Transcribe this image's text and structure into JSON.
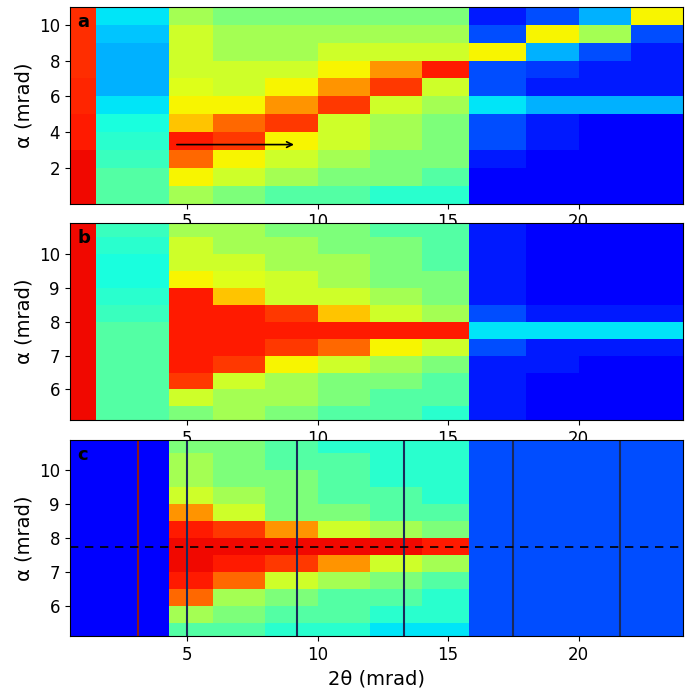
{
  "chart_data": [
    {
      "type": "heatmap",
      "label": "a",
      "y_label": "α (mrad)",
      "xlim": [
        0.5,
        24
      ],
      "ylim": [
        0,
        11
      ],
      "xticks": [
        5,
        10,
        15,
        20
      ],
      "yticks": [
        2,
        4,
        6,
        8,
        10
      ],
      "clim": [
        0,
        1
      ],
      "x_edges": [
        0.5,
        1.5,
        4.3,
        6,
        8,
        10,
        12,
        14,
        15.8,
        18,
        20,
        22,
        24
      ],
      "y_edges": [
        0,
        1,
        2,
        3,
        4,
        5,
        6,
        7,
        8,
        9,
        10,
        11
      ],
      "cells": [
        [
          0.9,
          0.45,
          0.55,
          0.5,
          0.45,
          0.45,
          0.4,
          0.4,
          0.12,
          0.12,
          0.12,
          0.12
        ],
        [
          0.9,
          0.45,
          0.65,
          0.6,
          0.55,
          0.5,
          0.5,
          0.45,
          0.12,
          0.12,
          0.12,
          0.12
        ],
        [
          0.9,
          0.42,
          0.8,
          0.65,
          0.6,
          0.55,
          0.5,
          0.5,
          0.15,
          0.12,
          0.12,
          0.12
        ],
        [
          0.88,
          0.4,
          0.88,
          0.85,
          0.65,
          0.6,
          0.55,
          0.5,
          0.2,
          0.15,
          0.12,
          0.12
        ],
        [
          0.88,
          0.38,
          0.7,
          0.8,
          0.85,
          0.6,
          0.55,
          0.5,
          0.2,
          0.15,
          0.12,
          0.12
        ],
        [
          0.87,
          0.35,
          0.65,
          0.65,
          0.75,
          0.85,
          0.6,
          0.55,
          0.35,
          0.3,
          0.3,
          0.3
        ],
        [
          0.87,
          0.3,
          0.62,
          0.6,
          0.65,
          0.75,
          0.85,
          0.6,
          0.2,
          0.15,
          0.15,
          0.15
        ],
        [
          0.86,
          0.3,
          0.6,
          0.6,
          0.6,
          0.65,
          0.75,
          0.88,
          0.2,
          0.18,
          0.15,
          0.15
        ],
        [
          0.86,
          0.3,
          0.6,
          0.55,
          0.55,
          0.6,
          0.6,
          0.6,
          0.65,
          0.3,
          0.2,
          0.15
        ],
        [
          0.86,
          0.32,
          0.6,
          0.55,
          0.55,
          0.55,
          0.55,
          0.55,
          0.2,
          0.65,
          0.55,
          0.2
        ],
        [
          0.86,
          0.35,
          0.55,
          0.5,
          0.5,
          0.5,
          0.5,
          0.5,
          0.15,
          0.2,
          0.3,
          0.65
        ]
      ],
      "arrow": {
        "x": [
          4.5,
          9.2
        ],
        "y": [
          3.3,
          3.3
        ]
      }
    },
    {
      "type": "heatmap",
      "label": "b",
      "y_label": "α (mrad)",
      "xlim": [
        0.5,
        24
      ],
      "ylim": [
        5.1,
        10.9
      ],
      "xticks": [
        5,
        10,
        15,
        20
      ],
      "yticks": [
        6,
        7,
        8,
        9,
        10
      ],
      "clim": [
        0,
        1
      ],
      "x_edges": [
        0.5,
        1.5,
        4.3,
        6,
        8,
        10,
        12,
        14,
        15.8,
        18,
        20,
        22,
        24
      ],
      "y_edges": [
        5,
        5.5,
        6,
        6.5,
        7,
        7.5,
        8,
        8.5,
        9,
        9.5,
        10,
        10.5,
        11
      ],
      "cells": [
        [
          0.9,
          0.45,
          0.5,
          0.55,
          0.5,
          0.45,
          0.45,
          0.4,
          0.15,
          0.12,
          0.12,
          0.12
        ],
        [
          0.9,
          0.45,
          0.6,
          0.55,
          0.55,
          0.5,
          0.45,
          0.45,
          0.15,
          0.12,
          0.12,
          0.12
        ],
        [
          0.9,
          0.45,
          0.85,
          0.6,
          0.55,
          0.5,
          0.5,
          0.45,
          0.15,
          0.12,
          0.12,
          0.12
        ],
        [
          0.9,
          0.45,
          0.88,
          0.85,
          0.65,
          0.6,
          0.55,
          0.5,
          0.15,
          0.15,
          0.12,
          0.12
        ],
        [
          0.9,
          0.45,
          0.88,
          0.88,
          0.85,
          0.8,
          0.65,
          0.6,
          0.2,
          0.15,
          0.15,
          0.15
        ],
        [
          0.9,
          0.45,
          0.88,
          0.88,
          0.88,
          0.88,
          0.88,
          0.88,
          0.35,
          0.35,
          0.35,
          0.35
        ],
        [
          0.9,
          0.42,
          0.88,
          0.88,
          0.85,
          0.7,
          0.6,
          0.55,
          0.2,
          0.15,
          0.15,
          0.15
        ],
        [
          0.9,
          0.4,
          0.88,
          0.7,
          0.6,
          0.6,
          0.55,
          0.5,
          0.15,
          0.12,
          0.12,
          0.12
        ],
        [
          0.9,
          0.38,
          0.65,
          0.62,
          0.6,
          0.55,
          0.5,
          0.5,
          0.15,
          0.12,
          0.12,
          0.12
        ],
        [
          0.9,
          0.38,
          0.6,
          0.6,
          0.55,
          0.55,
          0.5,
          0.45,
          0.15,
          0.12,
          0.12,
          0.12
        ],
        [
          0.9,
          0.4,
          0.6,
          0.55,
          0.55,
          0.5,
          0.5,
          0.45,
          0.15,
          0.12,
          0.12,
          0.12
        ],
        [
          0.9,
          0.42,
          0.55,
          0.55,
          0.5,
          0.5,
          0.45,
          0.45,
          0.15,
          0.12,
          0.12,
          0.12
        ]
      ]
    },
    {
      "type": "heatmap",
      "label": "c",
      "y_label": "α (mrad)",
      "x_label": "2θ (mrad)",
      "xlim": [
        0.5,
        24
      ],
      "ylim": [
        5.1,
        10.9
      ],
      "xticks": [
        5,
        10,
        15,
        20
      ],
      "yticks": [
        6,
        7,
        8,
        9,
        10
      ],
      "clim": [
        0,
        1
      ],
      "x_edges": [
        0.5,
        1.5,
        4.3,
        6,
        8,
        10,
        12,
        14,
        15.8,
        18,
        20,
        22,
        24
      ],
      "y_edges": [
        5,
        5.5,
        6,
        6.5,
        7,
        7.5,
        8,
        8.5,
        9,
        9.5,
        10,
        10.5,
        11
      ],
      "cells": [
        [
          0.12,
          0.12,
          0.45,
          0.45,
          0.4,
          0.4,
          0.35,
          0.35,
          0.2,
          0.2,
          0.2,
          0.2
        ],
        [
          0.12,
          0.12,
          0.55,
          0.5,
          0.45,
          0.45,
          0.4,
          0.4,
          0.2,
          0.2,
          0.2,
          0.2
        ],
        [
          0.12,
          0.12,
          0.8,
          0.55,
          0.5,
          0.45,
          0.45,
          0.4,
          0.2,
          0.2,
          0.2,
          0.2
        ],
        [
          0.12,
          0.12,
          0.88,
          0.8,
          0.6,
          0.55,
          0.5,
          0.45,
          0.2,
          0.2,
          0.2,
          0.2
        ],
        [
          0.12,
          0.12,
          0.9,
          0.88,
          0.85,
          0.75,
          0.6,
          0.55,
          0.2,
          0.2,
          0.2,
          0.2
        ],
        [
          0.12,
          0.12,
          0.9,
          0.9,
          0.9,
          0.9,
          0.9,
          0.88,
          0.2,
          0.2,
          0.2,
          0.2
        ],
        [
          0.12,
          0.12,
          0.88,
          0.85,
          0.75,
          0.6,
          0.55,
          0.5,
          0.2,
          0.2,
          0.2,
          0.2
        ],
        [
          0.12,
          0.12,
          0.75,
          0.6,
          0.5,
          0.5,
          0.45,
          0.45,
          0.2,
          0.2,
          0.2,
          0.2
        ],
        [
          0.12,
          0.12,
          0.6,
          0.55,
          0.5,
          0.45,
          0.45,
          0.4,
          0.2,
          0.2,
          0.2,
          0.2
        ],
        [
          0.12,
          0.12,
          0.55,
          0.5,
          0.5,
          0.45,
          0.4,
          0.4,
          0.2,
          0.2,
          0.2,
          0.2
        ],
        [
          0.12,
          0.12,
          0.55,
          0.5,
          0.45,
          0.45,
          0.4,
          0.4,
          0.2,
          0.2,
          0.2,
          0.2
        ],
        [
          0.12,
          0.12,
          0.5,
          0.5,
          0.45,
          0.4,
          0.4,
          0.4,
          0.2,
          0.2,
          0.2,
          0.2
        ]
      ],
      "hline": 7.75,
      "vlines": [
        {
          "value": 3.1,
          "color": "#8b1a1a"
        },
        {
          "value": 5,
          "color": "#1a2a5a"
        },
        {
          "value": 9.2,
          "color": "#1a2a5a"
        },
        {
          "value": 13.3,
          "color": "#1a2a5a"
        },
        {
          "value": 17.5,
          "color": "#1a2a5a"
        },
        {
          "value": 21.6,
          "color": "#1a2a5a"
        }
      ]
    }
  ]
}
